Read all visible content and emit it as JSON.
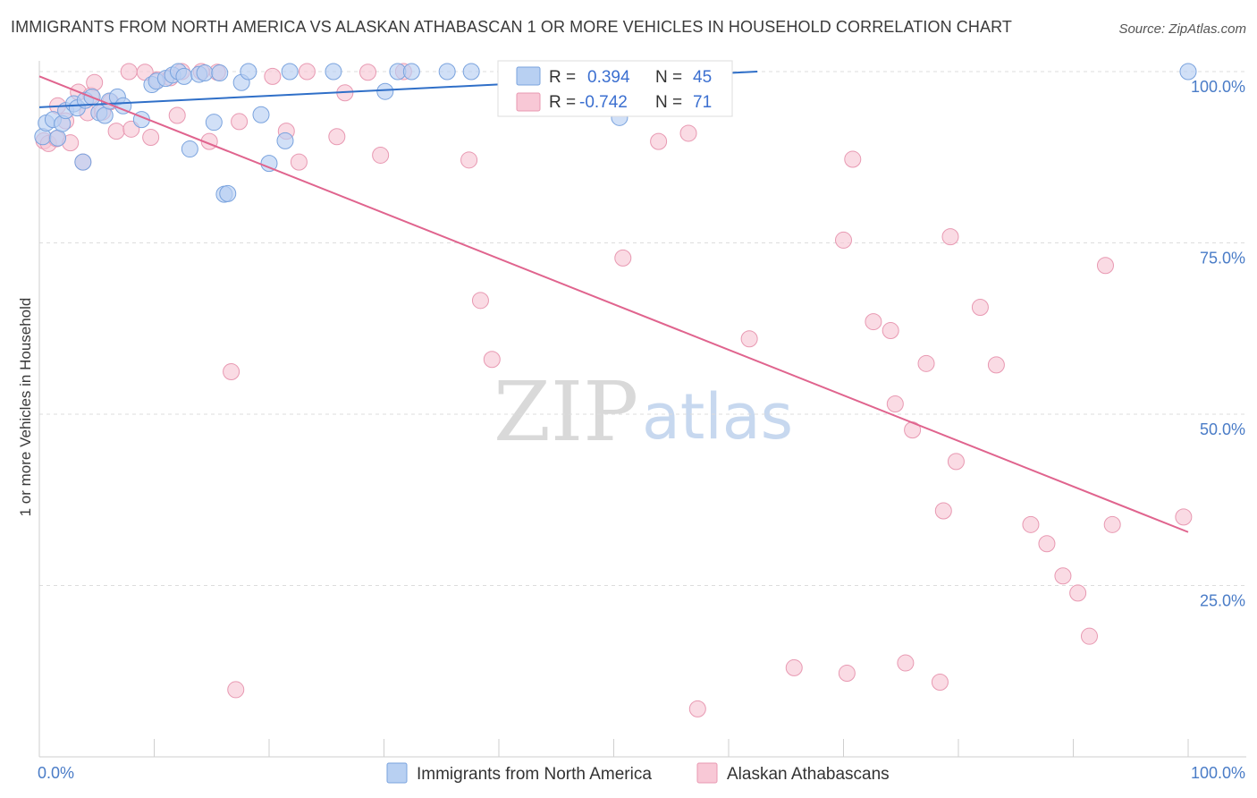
{
  "header": {
    "title": "IMMIGRANTS FROM NORTH AMERICA VS ALASKAN ATHABASCAN 1 OR MORE VEHICLES IN HOUSEHOLD CORRELATION CHART",
    "source": "Source: ZipAtlas.com"
  },
  "watermark": {
    "zip": "ZIP",
    "atlas": "atlas"
  },
  "colors": {
    "blue_fill": "#b8d0f2",
    "blue_stroke": "#7aa3de",
    "blue_line": "#2f6fc8",
    "pink_fill": "#f8c8d6",
    "pink_stroke": "#e899b2",
    "pink_line": "#e0648e",
    "grid": "#dddddd",
    "tick_text": "#4a7cc7"
  },
  "stats": {
    "blue": {
      "r_label": "R =",
      "r_value": "0.394",
      "n_label": "N =",
      "n_value": "45"
    },
    "pink": {
      "r_label": "R =",
      "r_value": "-0.742",
      "n_label": "N =",
      "n_value": "71"
    }
  },
  "chart_data": {
    "type": "scatter",
    "title": "IMMIGRANTS FROM NORTH AMERICA VS ALASKAN ATHABASCAN 1 OR MORE VEHICLES IN HOUSEHOLD CORRELATION CHART",
    "xlabel": "",
    "ylabel": "1 or more Vehicles in Household",
    "xlim": [
      0,
      100
    ],
    "ylim": [
      0,
      100
    ],
    "x_tick_labels": [
      "0.0%",
      "100.0%"
    ],
    "y_ticks": [
      25,
      50,
      75,
      100
    ],
    "y_tick_labels": [
      "25.0%",
      "50.0%",
      "75.0%",
      "100.0%"
    ],
    "grid": true,
    "legend_position": "bottom",
    "series": [
      {
        "name": "Immigrants from North America",
        "color": "#b8d0f2",
        "r": 0.394,
        "n": 45,
        "trend": {
          "x": [
            0,
            62.5
          ],
          "y": [
            94.8,
            100
          ]
        },
        "points": [
          [
            0.3,
            90.5
          ],
          [
            0.6,
            92.5
          ],
          [
            1.2,
            93.0
          ],
          [
            1.6,
            90.3
          ],
          [
            2.0,
            92.4
          ],
          [
            2.3,
            94.3
          ],
          [
            3.0,
            95.3
          ],
          [
            3.3,
            94.7
          ],
          [
            3.8,
            86.8
          ],
          [
            4.0,
            95.8
          ],
          [
            4.6,
            96.3
          ],
          [
            5.2,
            94.0
          ],
          [
            5.7,
            93.6
          ],
          [
            6.1,
            95.7
          ],
          [
            6.8,
            96.3
          ],
          [
            7.3,
            95.0
          ],
          [
            8.9,
            93.0
          ],
          [
            9.8,
            98.1
          ],
          [
            10.2,
            98.6
          ],
          [
            11.0,
            99.0
          ],
          [
            11.6,
            99.5
          ],
          [
            12.1,
            100
          ],
          [
            12.6,
            99.3
          ],
          [
            13.1,
            88.7
          ],
          [
            13.9,
            99.6
          ],
          [
            14.4,
            99.8
          ],
          [
            15.2,
            92.6
          ],
          [
            15.7,
            99.8
          ],
          [
            16.1,
            82.1
          ],
          [
            16.4,
            82.2
          ],
          [
            17.6,
            98.4
          ],
          [
            18.2,
            100
          ],
          [
            19.3,
            93.7
          ],
          [
            20.0,
            86.6
          ],
          [
            21.4,
            89.9
          ],
          [
            21.8,
            100
          ],
          [
            25.6,
            100
          ],
          [
            30.1,
            97.1
          ],
          [
            31.2,
            100
          ],
          [
            32.4,
            100
          ],
          [
            35.5,
            100
          ],
          [
            37.6,
            100
          ],
          [
            44.4,
            100
          ],
          [
            50.5,
            93.3
          ],
          [
            100,
            100
          ]
        ]
      },
      {
        "name": "Alaskan Athabascans",
        "color": "#f8c8d6",
        "r": -0.742,
        "n": 71,
        "trend": {
          "x": [
            0,
            100
          ],
          "y": [
            99.3,
            32.8
          ]
        },
        "points": [
          [
            0.4,
            89.9
          ],
          [
            0.8,
            89.5
          ],
          [
            1.5,
            90.2
          ],
          [
            1.6,
            95.0
          ],
          [
            2.3,
            92.8
          ],
          [
            2.7,
            89.6
          ],
          [
            3.4,
            97.0
          ],
          [
            3.8,
            86.8
          ],
          [
            4.2,
            94.0
          ],
          [
            4.5,
            96.5
          ],
          [
            4.8,
            98.4
          ],
          [
            5.5,
            94.1
          ],
          [
            6.2,
            95.6
          ],
          [
            6.7,
            91.3
          ],
          [
            7.8,
            100
          ],
          [
            8.0,
            91.6
          ],
          [
            9.2,
            99.9
          ],
          [
            9.7,
            90.4
          ],
          [
            10.3,
            98.8
          ],
          [
            11.4,
            99.1
          ],
          [
            12.0,
            93.6
          ],
          [
            12.4,
            100
          ],
          [
            14.1,
            100
          ],
          [
            14.8,
            89.8
          ],
          [
            15.5,
            99.9
          ],
          [
            16.7,
            56.2
          ],
          [
            17.1,
            9.8
          ],
          [
            17.4,
            92.7
          ],
          [
            20.3,
            99.3
          ],
          [
            21.5,
            91.3
          ],
          [
            22.6,
            86.8
          ],
          [
            23.3,
            100
          ],
          [
            25.9,
            90.5
          ],
          [
            26.6,
            96.9
          ],
          [
            28.6,
            99.9
          ],
          [
            29.7,
            87.8
          ],
          [
            31.7,
            100
          ],
          [
            37.4,
            87.1
          ],
          [
            38.4,
            66.6
          ],
          [
            39.4,
            58.0
          ],
          [
            43.4,
            100
          ],
          [
            45.6,
            100
          ],
          [
            50.8,
            72.8
          ],
          [
            53.9,
            89.8
          ],
          [
            56.5,
            91.0
          ],
          [
            57.3,
            7.0
          ],
          [
            61.8,
            61.0
          ],
          [
            65.7,
            13.0
          ],
          [
            70.0,
            75.4
          ],
          [
            70.3,
            12.2
          ],
          [
            70.8,
            87.2
          ],
          [
            72.6,
            63.5
          ],
          [
            74.1,
            62.2
          ],
          [
            74.5,
            51.5
          ],
          [
            75.4,
            13.7
          ],
          [
            76.0,
            47.7
          ],
          [
            77.2,
            57.4
          ],
          [
            78.4,
            10.9
          ],
          [
            78.7,
            35.9
          ],
          [
            79.3,
            75.9
          ],
          [
            79.8,
            43.1
          ],
          [
            81.9,
            65.6
          ],
          [
            83.3,
            57.2
          ],
          [
            86.3,
            33.9
          ],
          [
            87.7,
            31.1
          ],
          [
            89.1,
            26.4
          ],
          [
            90.4,
            23.9
          ],
          [
            91.4,
            17.6
          ],
          [
            92.8,
            71.7
          ],
          [
            93.4,
            33.9
          ],
          [
            99.6,
            35.0
          ]
        ]
      }
    ]
  },
  "legend": {
    "items": [
      "Immigrants from North America",
      "Alaskan Athabascans"
    ]
  }
}
